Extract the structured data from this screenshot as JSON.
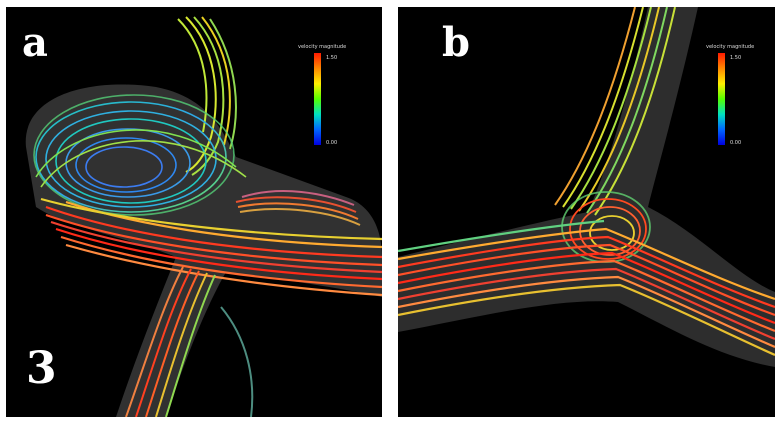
{
  "figure_number": "3",
  "panels": [
    {
      "letter": "a",
      "scale": {
        "title": "velocity magnitude",
        "max_label": "1.50",
        "min_label": "0.00"
      }
    },
    {
      "letter": "b",
      "scale": {
        "title": "velocity magnitude",
        "max_label": "1.50",
        "min_label": "0.00"
      }
    }
  ],
  "colormap": [
    "#ff1a00",
    "#ff8800",
    "#ffee00",
    "#55ff00",
    "#00e0c0",
    "#0066ff",
    "#0000e0"
  ],
  "background_color": "#000000"
}
